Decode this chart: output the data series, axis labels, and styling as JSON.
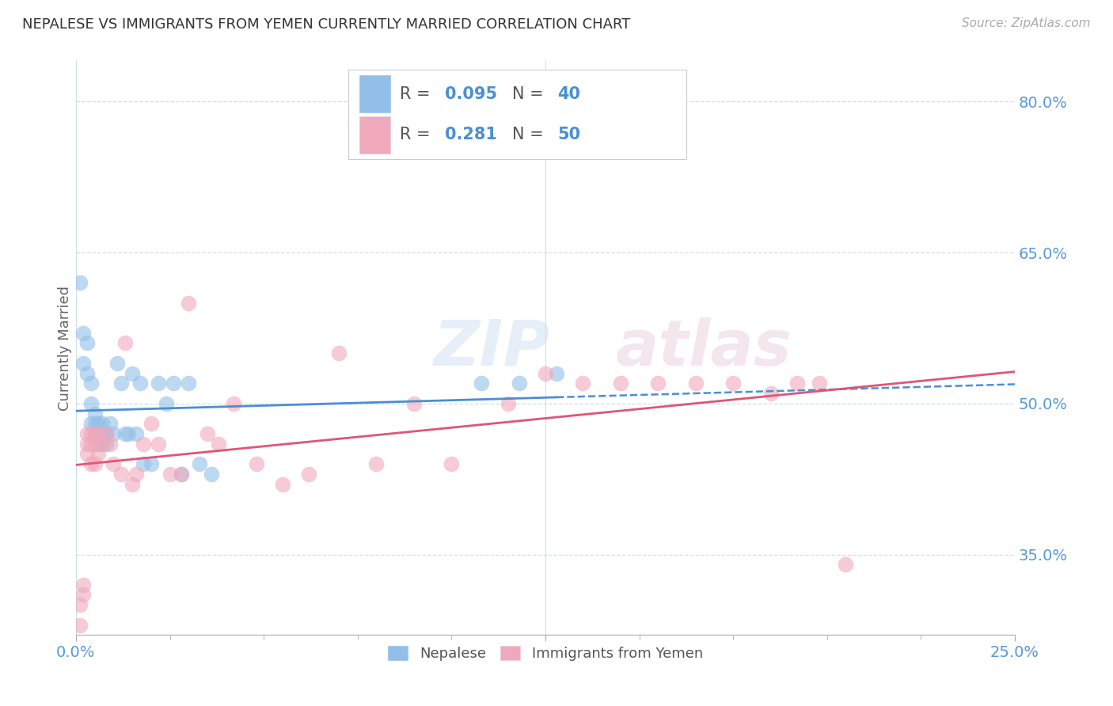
{
  "title": "NEPALESE VS IMMIGRANTS FROM YEMEN CURRENTLY MARRIED CORRELATION CHART",
  "source": "Source: ZipAtlas.com",
  "ylabel": "Currently Married",
  "y_ticks": [
    0.35,
    0.5,
    0.65,
    0.8
  ],
  "y_tick_labels": [
    "35.0%",
    "50.0%",
    "65.0%",
    "80.0%"
  ],
  "xlim": [
    0.0,
    0.25
  ],
  "ylim": [
    0.27,
    0.84
  ],
  "watermark": "ZIPatlas",
  "nepalese_R": "0.095",
  "nepalese_N": "40",
  "yemen_R": "0.281",
  "yemen_N": "50",
  "blue_color": "#92bfe8",
  "pink_color": "#f0a8bb",
  "blue_line_color": "#4a8fd4",
  "pink_line_color": "#e05575",
  "tick_label_color": "#5599dd",
  "title_color": "#333333",
  "grid_color": "#d0dded",
  "nepalese_x": [
    0.001,
    0.002,
    0.002,
    0.003,
    0.003,
    0.004,
    0.004,
    0.004,
    0.005,
    0.005,
    0.005,
    0.006,
    0.006,
    0.006,
    0.007,
    0.007,
    0.007,
    0.008,
    0.008,
    0.009,
    0.01,
    0.011,
    0.012,
    0.013,
    0.014,
    0.015,
    0.016,
    0.017,
    0.018,
    0.02,
    0.022,
    0.024,
    0.026,
    0.028,
    0.03,
    0.033,
    0.036,
    0.108,
    0.118,
    0.128
  ],
  "nepalese_y": [
    0.62,
    0.57,
    0.54,
    0.56,
    0.53,
    0.52,
    0.5,
    0.48,
    0.49,
    0.48,
    0.47,
    0.48,
    0.47,
    0.46,
    0.48,
    0.47,
    0.46,
    0.47,
    0.46,
    0.48,
    0.47,
    0.54,
    0.52,
    0.47,
    0.47,
    0.53,
    0.47,
    0.52,
    0.44,
    0.44,
    0.52,
    0.5,
    0.52,
    0.43,
    0.52,
    0.44,
    0.43,
    0.52,
    0.52,
    0.53
  ],
  "yemen_x": [
    0.001,
    0.001,
    0.002,
    0.002,
    0.003,
    0.003,
    0.003,
    0.004,
    0.004,
    0.004,
    0.005,
    0.005,
    0.005,
    0.006,
    0.006,
    0.007,
    0.008,
    0.009,
    0.01,
    0.012,
    0.013,
    0.015,
    0.016,
    0.018,
    0.02,
    0.022,
    0.025,
    0.028,
    0.03,
    0.035,
    0.038,
    0.042,
    0.048,
    0.055,
    0.062,
    0.07,
    0.08,
    0.09,
    0.1,
    0.115,
    0.125,
    0.135,
    0.145,
    0.155,
    0.165,
    0.175,
    0.185,
    0.192,
    0.198,
    0.205
  ],
  "yemen_y": [
    0.3,
    0.28,
    0.32,
    0.31,
    0.47,
    0.46,
    0.45,
    0.47,
    0.46,
    0.44,
    0.47,
    0.46,
    0.44,
    0.47,
    0.45,
    0.46,
    0.47,
    0.46,
    0.44,
    0.43,
    0.56,
    0.42,
    0.43,
    0.46,
    0.48,
    0.46,
    0.43,
    0.43,
    0.6,
    0.47,
    0.46,
    0.5,
    0.44,
    0.42,
    0.43,
    0.55,
    0.44,
    0.5,
    0.44,
    0.5,
    0.53,
    0.52,
    0.52,
    0.52,
    0.52,
    0.52,
    0.51,
    0.52,
    0.52,
    0.34
  ]
}
